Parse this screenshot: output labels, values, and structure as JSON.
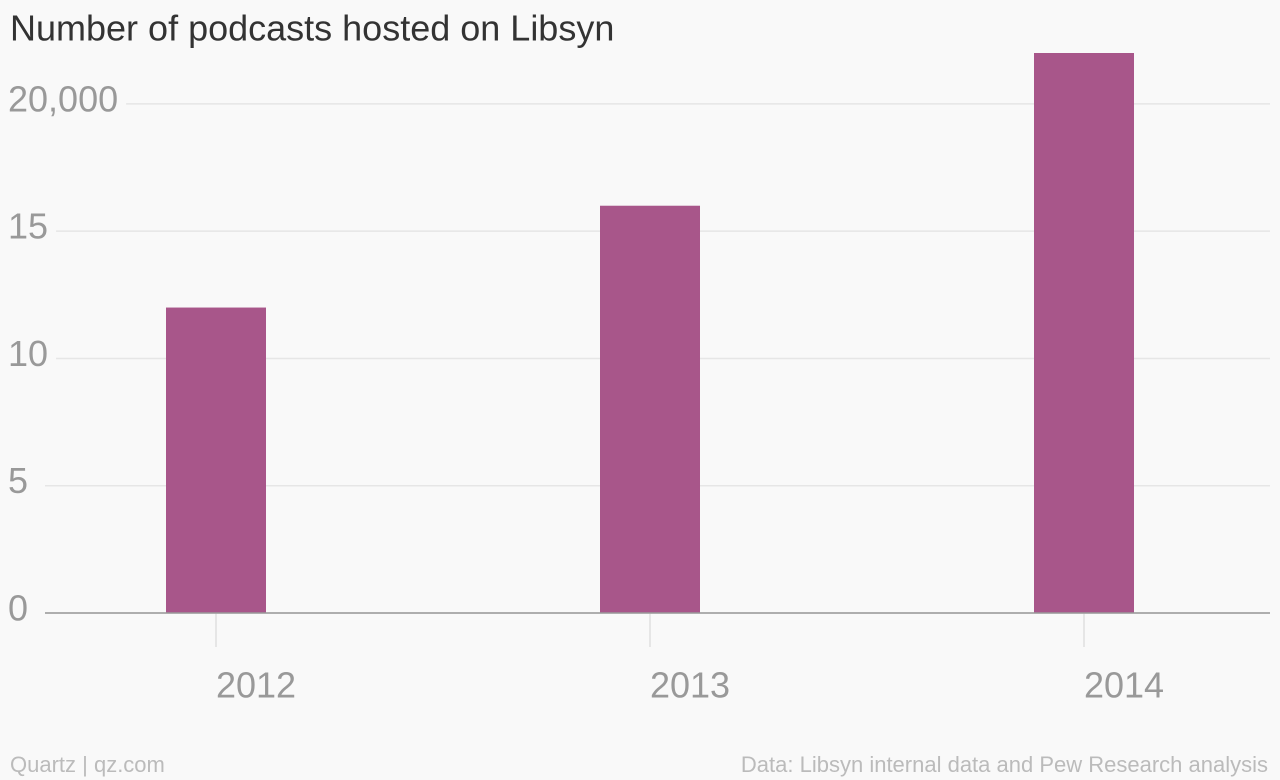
{
  "chart_data": {
    "type": "bar",
    "title": "Number of podcasts hosted on Libsyn",
    "categories": [
      "2012",
      "2013",
      "2014"
    ],
    "values": [
      12000,
      16000,
      22000
    ],
    "color": "#a8568a",
    "ylim": [
      0,
      22000
    ],
    "yticks": [
      0,
      {
        "value": 5000,
        "label": "5"
      },
      {
        "value": 10000,
        "label": "10"
      },
      {
        "value": 15000,
        "label": "15"
      },
      {
        "value": 20000,
        "label": "20,000"
      }
    ],
    "grid": true,
    "credit": "Quartz | qz.com",
    "source": "Data: Libsyn internal data and Pew Research analysis"
  }
}
